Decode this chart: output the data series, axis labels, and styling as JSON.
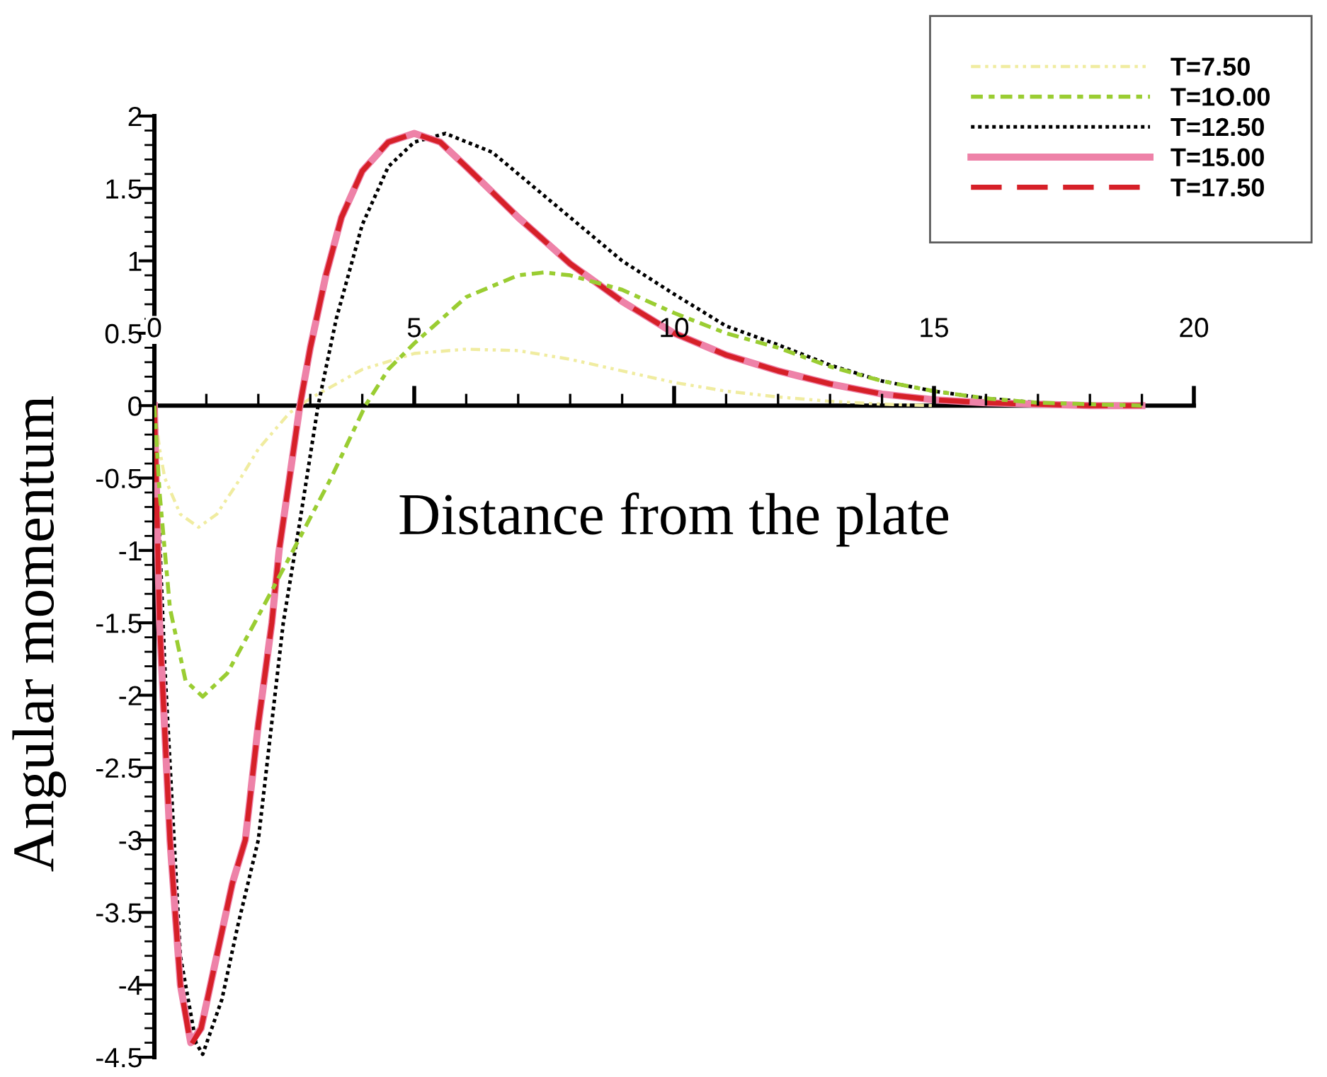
{
  "chart_data": {
    "type": "line",
    "xlabel": "Distance from the plate",
    "ylabel": "Angular momentum",
    "xlim": [
      0,
      20
    ],
    "ylim": [
      -4.5,
      2
    ],
    "xticks": [
      0,
      5,
      10,
      15,
      20
    ],
    "yticks": [
      2,
      1.5,
      1,
      0.5,
      0,
      -0.5,
      -1,
      -1.5,
      -2,
      -2.5,
      -3,
      -3.5,
      -4,
      -4.5
    ],
    "grid": false,
    "legend": "top right",
    "marker": "none",
    "series": [
      {
        "name": "T=7.50",
        "color": "#f0eca0",
        "line_style": "dashdotdot",
        "x": [
          0,
          0.1,
          0.2,
          0.5,
          0.85,
          1.2,
          1.66,
          2.0,
          2.6,
          3.0,
          4.0,
          5.0,
          6.0,
          7.0,
          8.0,
          9.0,
          10.0,
          11.0,
          12.0,
          13.0,
          14.0,
          15.0
        ],
        "values": [
          0,
          -0.3,
          -0.5,
          -0.75,
          -0.84,
          -0.75,
          -0.5,
          -0.3,
          -0.05,
          0.05,
          0.25,
          0.36,
          0.39,
          0.38,
          0.32,
          0.24,
          0.16,
          0.1,
          0.06,
          0.03,
          0.01,
          0
        ]
      },
      {
        "name": "T=1O.00",
        "color": "#9acd32",
        "line_style": "dashdot",
        "x": [
          0,
          0.1,
          0.3,
          0.6,
          0.93,
          1.4,
          1.93,
          2.67,
          3.4,
          4.06,
          4.5,
          5.0,
          6.0,
          7.0,
          7.5,
          8.0,
          9.0,
          10.0,
          11.0,
          12.0,
          13.0,
          14.0,
          15.0,
          16.0,
          17.0,
          18.0,
          19.0
        ],
        "values": [
          0,
          -0.6,
          -1.4,
          -1.9,
          -2.01,
          -1.85,
          -1.5,
          -1.0,
          -0.5,
          0,
          0.25,
          0.43,
          0.75,
          0.9,
          0.92,
          0.9,
          0.8,
          0.64,
          0.5,
          0.4,
          0.27,
          0.17,
          0.1,
          0.05,
          0.02,
          0.01,
          0
        ]
      },
      {
        "name": "T=12.50",
        "color": "#000000",
        "line_style": "dotted",
        "x": [
          0,
          0.2,
          0.5,
          0.8,
          0.93,
          1.3,
          1.6,
          2.0,
          2.48,
          2.8,
          3.15,
          3.5,
          4.0,
          4.5,
          5.0,
          5.6,
          6.5,
          7.5,
          8.0,
          9.0,
          10.0,
          11.0,
          12.0,
          13.0,
          14.0,
          15.0,
          16.0,
          17.0,
          18.0,
          19.0
        ],
        "values": [
          0,
          -1.8,
          -3.8,
          -4.4,
          -4.48,
          -4.1,
          -3.6,
          -3.0,
          -1.5,
          -0.8,
          0,
          0.6,
          1.25,
          1.65,
          1.82,
          1.88,
          1.75,
          1.45,
          1.3,
          1.0,
          0.77,
          0.55,
          0.42,
          0.28,
          0.17,
          0.1,
          0.05,
          0.02,
          0.01,
          0
        ]
      },
      {
        "name": "T=15.00",
        "color": "#ee82a8",
        "line_style": "solid",
        "x": [
          0,
          0.1,
          0.3,
          0.5,
          0.7,
          0.9,
          1.2,
          1.5,
          1.75,
          2.0,
          2.26,
          2.4,
          2.6,
          2.8,
          3.0,
          3.3,
          3.6,
          4.0,
          4.5,
          5.0,
          5.5,
          6.0,
          7.0,
          8.0,
          9.0,
          10.0,
          11.0,
          12.0,
          13.0,
          14.0,
          15.0,
          16.0,
          17.0,
          18.0,
          19.0
        ],
        "values": [
          0,
          -1.5,
          -3.0,
          -4.0,
          -4.4,
          -4.3,
          -3.8,
          -3.3,
          -3.0,
          -2.2,
          -1.5,
          -1.0,
          -0.5,
          0,
          0.4,
          0.9,
          1.3,
          1.62,
          1.82,
          1.88,
          1.82,
          1.65,
          1.3,
          0.98,
          0.72,
          0.5,
          0.35,
          0.24,
          0.15,
          0.08,
          0.04,
          0.02,
          0.01,
          0,
          0
        ]
      },
      {
        "name": "T=17.50",
        "color": "#d62028",
        "line_style": "dashed",
        "x": [
          0,
          0.1,
          0.3,
          0.5,
          0.7,
          0.9,
          1.2,
          1.5,
          1.75,
          2.0,
          2.26,
          2.4,
          2.6,
          2.8,
          3.0,
          3.3,
          3.6,
          4.0,
          4.5,
          5.0,
          5.5,
          6.0,
          7.0,
          8.0,
          9.0,
          10.0,
          11.0,
          12.0,
          13.0,
          14.0,
          15.0,
          16.0,
          17.0,
          18.0,
          19.0
        ],
        "values": [
          0,
          -1.5,
          -3.0,
          -4.0,
          -4.42,
          -4.3,
          -3.8,
          -3.3,
          -3.0,
          -2.2,
          -1.5,
          -1.0,
          -0.5,
          0,
          0.4,
          0.9,
          1.3,
          1.62,
          1.82,
          1.88,
          1.82,
          1.65,
          1.3,
          0.98,
          0.72,
          0.5,
          0.35,
          0.24,
          0.15,
          0.08,
          0.04,
          0.02,
          0.01,
          0,
          0
        ]
      }
    ]
  }
}
